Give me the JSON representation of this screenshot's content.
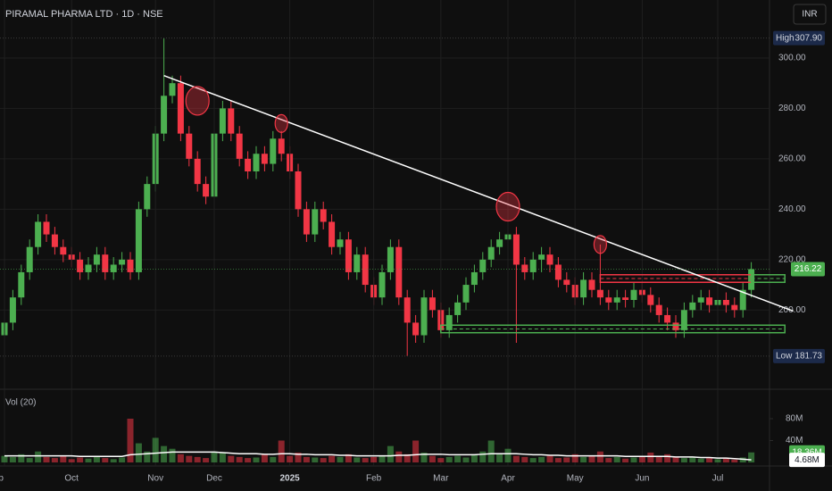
{
  "chart_data": {
    "type": "candlestick",
    "title": "PIRAMAL PHARMA LTD · 1D · NSE",
    "currency": "INR",
    "volume_title": "Vol (20)",
    "up_color": "#4caf50",
    "down_color": "#f23645",
    "open": [
      190,
      195,
      205,
      215,
      225,
      235,
      230,
      225,
      222,
      220,
      215,
      218,
      222,
      215,
      218,
      220,
      215,
      240,
      250,
      270,
      285,
      290,
      270,
      260,
      250,
      245,
      270,
      280,
      270,
      260,
      255,
      262,
      258,
      268,
      262,
      255,
      240,
      230,
      240,
      235,
      225,
      228,
      215,
      222,
      210,
      205,
      215,
      225,
      205,
      195,
      190,
      205,
      200,
      192,
      198,
      203,
      210,
      215,
      220,
      225,
      228,
      230,
      218,
      215,
      220,
      222,
      218,
      212,
      210,
      205,
      212,
      208,
      205,
      203,
      205,
      204,
      208,
      206,
      202,
      198,
      195,
      192,
      200,
      203,
      205,
      202,
      204,
      202,
      200,
      208
    ],
    "high": [
      198,
      208,
      218,
      228,
      238,
      238,
      233,
      228,
      225,
      223,
      221,
      225,
      225,
      221,
      223,
      223,
      243,
      253,
      273,
      307.9,
      293,
      293,
      273,
      263,
      253,
      273,
      283,
      283,
      273,
      263,
      265,
      265,
      271,
      271,
      265,
      258,
      243,
      243,
      243,
      238,
      231,
      231,
      225,
      225,
      213,
      218,
      228,
      228,
      208,
      198,
      208,
      208,
      203,
      201,
      206,
      213,
      218,
      223,
      228,
      231,
      241,
      233,
      221,
      223,
      225,
      225,
      221,
      215,
      213,
      215,
      215,
      226,
      208,
      208,
      208,
      211,
      211,
      209,
      205,
      201,
      198,
      203,
      206,
      208,
      208,
      207,
      207,
      205,
      211,
      219
    ],
    "low": [
      187,
      192,
      202,
      212,
      222,
      227,
      222,
      219,
      217,
      212,
      212,
      215,
      212,
      212,
      215,
      212,
      212,
      237,
      247,
      267,
      282,
      267,
      257,
      247,
      242,
      242,
      267,
      267,
      257,
      252,
      252,
      255,
      255,
      259,
      252,
      237,
      227,
      227,
      232,
      222,
      222,
      212,
      212,
      207,
      202,
      202,
      212,
      202,
      181.73,
      187,
      187,
      197,
      189,
      189,
      195,
      200,
      207,
      212,
      217,
      222,
      215,
      187,
      212,
      212,
      215,
      215,
      209,
      207,
      202,
      202,
      205,
      202,
      200,
      200,
      201,
      201,
      203,
      199,
      195,
      192,
      189,
      189,
      197,
      200,
      199,
      199,
      199,
      197,
      197,
      205
    ],
    "close": [
      195,
      205,
      215,
      225,
      235,
      230,
      225,
      222,
      220,
      215,
      218,
      222,
      215,
      218,
      220,
      215,
      240,
      250,
      270,
      285,
      290,
      270,
      260,
      250,
      245,
      270,
      280,
      270,
      260,
      255,
      262,
      258,
      268,
      262,
      255,
      240,
      230,
      240,
      235,
      225,
      228,
      215,
      222,
      210,
      205,
      215,
      225,
      205,
      195,
      190,
      205,
      200,
      192,
      198,
      203,
      210,
      215,
      220,
      225,
      228,
      230,
      218,
      215,
      220,
      222,
      218,
      212,
      210,
      205,
      212,
      208,
      205,
      203,
      205,
      204,
      208,
      206,
      202,
      198,
      195,
      192,
      200,
      203,
      205,
      202,
      204,
      202,
      200,
      208,
      216.22
    ],
    "volume": [
      12,
      10,
      15,
      8,
      20,
      10,
      8,
      12,
      6,
      9,
      7,
      10,
      8,
      6,
      9,
      80,
      35,
      20,
      45,
      30,
      25,
      15,
      12,
      10,
      8,
      20,
      18,
      12,
      10,
      8,
      9,
      15,
      10,
      40,
      12,
      18,
      10,
      9,
      8,
      12,
      10,
      15,
      9,
      8,
      10,
      12,
      30,
      20,
      15,
      40,
      18,
      12,
      8,
      10,
      12,
      9,
      15,
      20,
      40,
      15,
      25,
      12,
      10,
      8,
      10,
      12,
      8,
      9,
      15,
      10,
      12,
      20,
      8,
      10,
      7,
      9,
      12,
      18,
      10,
      15,
      10,
      8,
      9,
      7,
      8,
      6,
      7,
      5,
      9,
      18.36
    ],
    "volume_ma": [
      12,
      12,
      12,
      12,
      12,
      12,
      12,
      12,
      12,
      11,
      11,
      11,
      11,
      11,
      11,
      14,
      15,
      16,
      17,
      18,
      19,
      19,
      19,
      19,
      19,
      19,
      18,
      17,
      16,
      16,
      16,
      15,
      15,
      16,
      16,
      15,
      15,
      14,
      14,
      14,
      13,
      13,
      12,
      12,
      12,
      12,
      12,
      13,
      13,
      14,
      15,
      15,
      15,
      14,
      14,
      14,
      14,
      15,
      16,
      16,
      16,
      16,
      15,
      14,
      14,
      13,
      13,
      12,
      12,
      12,
      12,
      12,
      12,
      12,
      11,
      11,
      11,
      11,
      11,
      11,
      10,
      10,
      10,
      9,
      9,
      8,
      8,
      7,
      6,
      4.68
    ],
    "xticks": [
      {
        "value": 0,
        "label": "Sep"
      },
      {
        "value": 8,
        "label": "Oct"
      },
      {
        "value": 18,
        "label": "Nov"
      },
      {
        "value": 25,
        "label": "Dec"
      },
      {
        "value": 34,
        "label": "2025"
      },
      {
        "value": 44,
        "label": "Feb"
      },
      {
        "value": 52,
        "label": "Mar"
      },
      {
        "value": 60,
        "label": "Apr"
      },
      {
        "value": 68,
        "label": "May"
      },
      {
        "value": 76,
        "label": "Jun"
      },
      {
        "value": 85,
        "label": "Jul"
      }
    ],
    "ylim": [
      170,
      323
    ],
    "yticks": [
      {
        "value": 200,
        "label": "200.00"
      },
      {
        "value": 220,
        "label": "220.00"
      },
      {
        "value": 240,
        "label": "240.00"
      },
      {
        "value": 260,
        "label": "260.00"
      },
      {
        "value": 280,
        "label": "280.00"
      },
      {
        "value": 300,
        "label": "300.00"
      }
    ],
    "vol_ylim": [
      0,
      80
    ],
    "vol_yticks": [
      {
        "value": 40,
        "label": "40M"
      },
      {
        "value": 80,
        "label": "80M"
      }
    ],
    "price_tags": [
      {
        "name": "High",
        "value": 307.9,
        "label": "307.90"
      },
      {
        "name": "Low",
        "value": 181.73
      }
    ],
    "volume_tags": [
      {
        "value": 18.36,
        "label": "18.36M"
      },
      {
        "value": 4.68,
        "label": "4.68M"
      }
    ],
    "trendline": {
      "x": [
        19,
        94
      ],
      "y": [
        293,
        199.6
      ]
    },
    "circles": [
      {
        "x": 23,
        "y": 283
      },
      {
        "x": 33,
        "y": 274
      },
      {
        "x": 60,
        "y": 241
      },
      {
        "x": 71,
        "y": 226
      }
    ],
    "zones": [
      {
        "x0": 52,
        "x1": 93,
        "y0": 191,
        "y1": 194,
        "color": "#4caf50"
      },
      {
        "x0": 71,
        "x1": 89,
        "y0": 211,
        "y1": 214,
        "color": "#f23645"
      },
      {
        "x0": 89,
        "x1": 93,
        "y0": 211,
        "y1": 214,
        "color": "#4caf50"
      }
    ]
  }
}
